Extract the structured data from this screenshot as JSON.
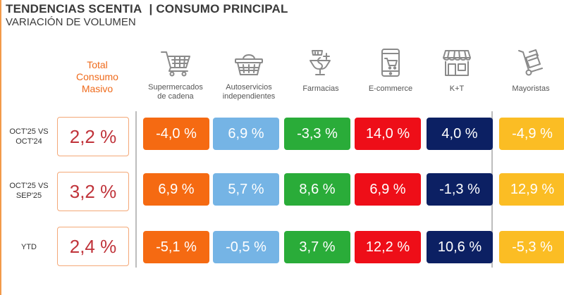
{
  "header": {
    "title_main": "TENDENCIAS SCENTIA",
    "title_section": "| CONSUMO PRINCIPAL",
    "subtitle": "VARIACIÓN DE VOLUMEN"
  },
  "total_column": {
    "label_line1": "Total",
    "label_line2": "Consumo",
    "label_line3": "Masivo"
  },
  "channels": [
    {
      "line1": "Supermercados",
      "line2": "de cadena",
      "icon": "shopping-cart-icon"
    },
    {
      "line1": "Autoservicios",
      "line2": "independientes",
      "icon": "shopping-basket-icon"
    },
    {
      "line1": "Farmacias",
      "line2": "",
      "icon": "pharmacy-icon"
    },
    {
      "line1": "E-commerce",
      "line2": "",
      "icon": "mobile-cart-icon"
    },
    {
      "line1": "K+T",
      "line2": "",
      "icon": "storefront-icon"
    },
    {
      "line1": "Mayoristas",
      "line2": "",
      "icon": "hand-truck-icon"
    }
  ],
  "rows": [
    {
      "label_line1": "OCT'25 VS",
      "label_line2": "OCT'24",
      "total": "2,2 %",
      "values": [
        "-4,0 %",
        "6,9 %",
        "-3,3 %",
        "14,0 %",
        "4,0 %",
        "-4,9 %"
      ]
    },
    {
      "label_line1": "OCT'25 VS",
      "label_line2": "SEP'25",
      "total": "3,2 %",
      "values": [
        "6,9 %",
        "5,7 %",
        "8,6 %",
        "6,9 %",
        "-1,3 %",
        "12,9 %"
      ]
    },
    {
      "label_line1": "YTD",
      "label_line2": "",
      "total": "2,4 %",
      "values": [
        "-5,1 %",
        "-0,5 %",
        "3,7 %",
        "12,2 %",
        "10,6 %",
        "-5,3 %"
      ]
    }
  ],
  "colors": {
    "accent_orange": "#ef6a1b",
    "supermercados": "#f56a12",
    "autoservicios": "#75b4e5",
    "farmacias": "#2aac39",
    "ecommerce": "#ee0e18",
    "kt": "#0c2063",
    "mayoristas": "#fbbd24",
    "total_value": "#c0333a"
  }
}
